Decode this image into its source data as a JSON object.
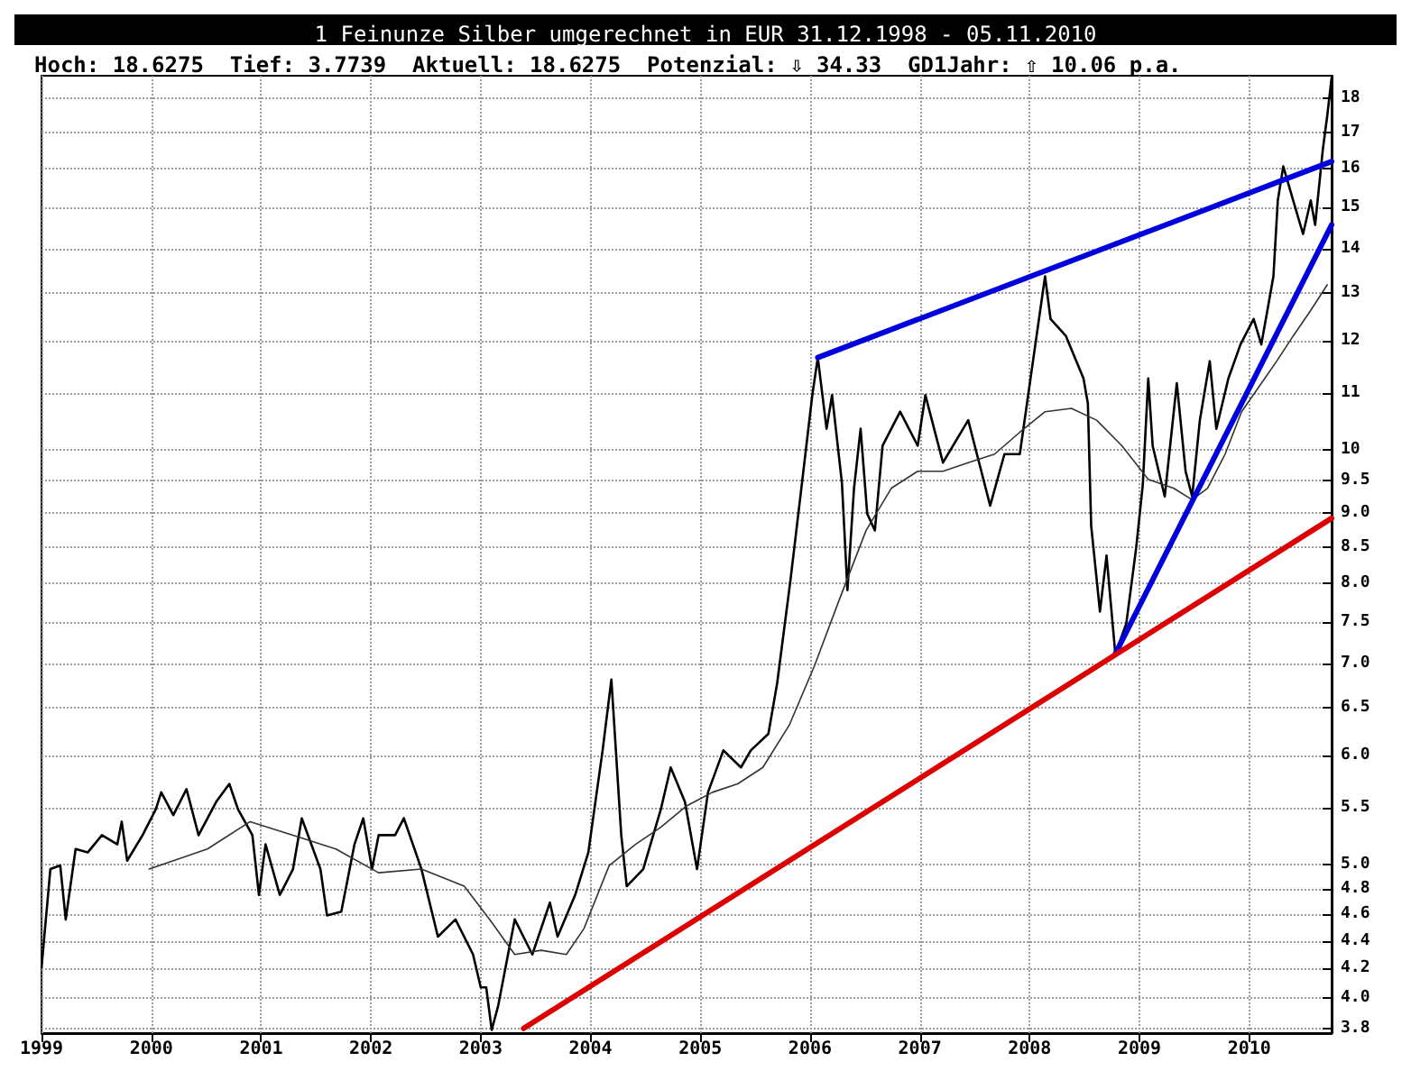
{
  "chart_data": {
    "type": "line",
    "title": "1 Feinunze Silber umgerechnet in EUR 31.12.1998 - 05.11.2010",
    "subtitle": "Hoch: 18.6275  Tief: 3.7739  Aktuell: 18.6275  Potenzial: ⇩ 34.33  GD1Jahr: ⇧ 10.06 p.a.",
    "log": "y",
    "grid": true,
    "marker": "none",
    "line_style": "solid",
    "xlim": [
      1999,
      2010.75
    ],
    "xticks": [
      1999,
      2000,
      2001,
      2002,
      2003,
      2004,
      2005,
      2006,
      2007,
      2008,
      2009,
      2010
    ],
    "ylim": [
      3.77,
      18.7
    ],
    "yticks": [
      3.8,
      {
        "value": 4,
        "label": "4.0"
      },
      4.2,
      4.4,
      4.6,
      4.8,
      {
        "value": 5,
        "label": "5.0"
      },
      5.5,
      {
        "value": 6,
        "label": "6.0"
      },
      6.5,
      {
        "value": 7,
        "label": "7.0"
      },
      7.5,
      {
        "value": 8,
        "label": "8.0"
      },
      8.5,
      {
        "value": 9,
        "label": "9.0"
      },
      9.5,
      10,
      11,
      12,
      13,
      14,
      15,
      16,
      17,
      18
    ],
    "series": [
      {
        "color": "#000000",
        "x": [
          1999.0,
          1999.08,
          1999.17,
          1999.22,
          1999.31,
          1999.42,
          1999.55,
          1999.69,
          1999.73,
          1999.78,
          1999.92,
          2000.04,
          2000.09,
          2000.2,
          2000.32,
          2000.43,
          2000.59,
          2000.71,
          2000.79,
          2000.92,
          2000.98,
          2001.04,
          2001.17,
          2001.29,
          2001.37,
          2001.54,
          2001.6,
          2001.73,
          2001.85,
          2001.93,
          2002.01,
          2002.07,
          2002.22,
          2002.3,
          2002.46,
          2002.61,
          2002.77,
          2002.93,
          2003.0,
          2003.05,
          2003.1,
          2003.16,
          2003.31,
          2003.47,
          2003.63,
          2003.7,
          2003.86,
          2003.98,
          2004.11,
          2004.19,
          2004.28,
          2004.33,
          2004.48,
          2004.64,
          2004.73,
          2004.86,
          2004.97,
          2005.07,
          2005.21,
          2005.37,
          2005.46,
          2005.62,
          2005.7,
          2005.82,
          2005.93,
          2006.02,
          2006.07,
          2006.15,
          2006.2,
          2006.29,
          2006.34,
          2006.4,
          2006.46,
          2006.52,
          2006.59,
          2006.66,
          2006.82,
          2006.98,
          2007.05,
          2007.21,
          2007.44,
          2007.64,
          2007.77,
          2007.91,
          2008.03,
          2008.14,
          2008.19,
          2008.33,
          2008.49,
          2008.53,
          2008.56,
          2008.64,
          2008.7,
          2008.78,
          2008.88,
          2008.97,
          2009.03,
          2009.08,
          2009.12,
          2009.23,
          2009.34,
          2009.42,
          2009.48,
          2009.55,
          2009.64,
          2009.7,
          2009.81,
          2009.92,
          2010.04,
          2010.11,
          2010.22,
          2010.26,
          2010.31,
          2010.4,
          2010.49,
          2010.56,
          2010.6,
          2010.67,
          2010.71,
          2010.75
        ],
        "values": [
          4.21,
          4.96,
          4.99,
          4.56,
          5.13,
          5.1,
          5.25,
          5.17,
          5.37,
          5.03,
          5.25,
          5.48,
          5.64,
          5.43,
          5.67,
          5.25,
          5.55,
          5.72,
          5.48,
          5.25,
          4.75,
          5.17,
          4.75,
          4.96,
          5.4,
          4.96,
          4.59,
          4.62,
          5.17,
          5.4,
          4.96,
          5.25,
          5.25,
          5.4,
          4.96,
          4.43,
          4.56,
          4.3,
          4.07,
          4.07,
          3.79,
          3.95,
          4.56,
          4.3,
          4.69,
          4.43,
          4.75,
          5.1,
          6.05,
          6.81,
          5.25,
          4.82,
          4.96,
          5.48,
          5.88,
          5.55,
          4.96,
          5.64,
          6.05,
          5.88,
          6.05,
          6.22,
          6.77,
          8.03,
          9.52,
          10.96,
          11.67,
          10.36,
          10.96,
          9.46,
          7.91,
          9.38,
          10.36,
          8.99,
          8.74,
          10.07,
          10.66,
          10.07,
          10.96,
          9.79,
          10.51,
          9.11,
          9.93,
          9.93,
          11.6,
          13.37,
          12.45,
          12.1,
          11.27,
          10.81,
          8.81,
          7.63,
          8.38,
          7.11,
          7.48,
          8.49,
          9.43,
          11.27,
          10.07,
          9.25,
          11.18,
          9.65,
          9.25,
          10.51,
          11.6,
          10.36,
          11.27,
          11.93,
          12.45,
          11.93,
          13.37,
          15.18,
          16.07,
          15.18,
          14.35,
          15.18,
          14.57,
          16.53,
          17.48,
          18.63
        ]
      },
      {
        "color": "#333333",
        "x": [
          1999.98,
          2000.51,
          2000.9,
          2001.29,
          2001.68,
          2002.07,
          2002.46,
          2002.85,
          2003.08,
          2003.31,
          2003.55,
          2003.78,
          2003.94,
          2004.17,
          2004.41,
          2004.64,
          2004.87,
          2005.11,
          2005.34,
          2005.57,
          2005.81,
          2006.04,
          2006.27,
          2006.51,
          2006.74,
          2006.98,
          2007.21,
          2007.44,
          2007.68,
          2007.91,
          2008.14,
          2008.38,
          2008.61,
          2008.84,
          2009.08,
          2009.31,
          2009.48,
          2009.62,
          2009.78,
          2009.93,
          2010.09,
          2010.25,
          2010.4,
          2010.56,
          2010.71
        ],
        "values": [
          4.96,
          5.13,
          5.37,
          5.25,
          5.13,
          4.93,
          4.96,
          4.82,
          4.56,
          4.3,
          4.33,
          4.3,
          4.49,
          4.99,
          5.17,
          5.32,
          5.51,
          5.64,
          5.72,
          5.88,
          6.31,
          6.97,
          7.8,
          8.74,
          9.38,
          9.65,
          9.65,
          9.79,
          9.93,
          10.3,
          10.66,
          10.72,
          10.51,
          10.07,
          9.52,
          9.38,
          9.2,
          9.38,
          9.93,
          10.66,
          11.12,
          11.6,
          12.1,
          12.63,
          13.18
        ]
      },
      {
        "color": "#0000dd",
        "x": [
          2006.07,
          2010.75
        ],
        "values": [
          11.67,
          16.2
        ]
      },
      {
        "color": "#0000dd",
        "x": [
          2008.78,
          2010.75
        ],
        "values": [
          7.11,
          14.57
        ]
      },
      {
        "color": "#dd0000",
        "x": [
          2003.39,
          2010.75
        ],
        "values": [
          3.8,
          8.92
        ]
      }
    ]
  }
}
